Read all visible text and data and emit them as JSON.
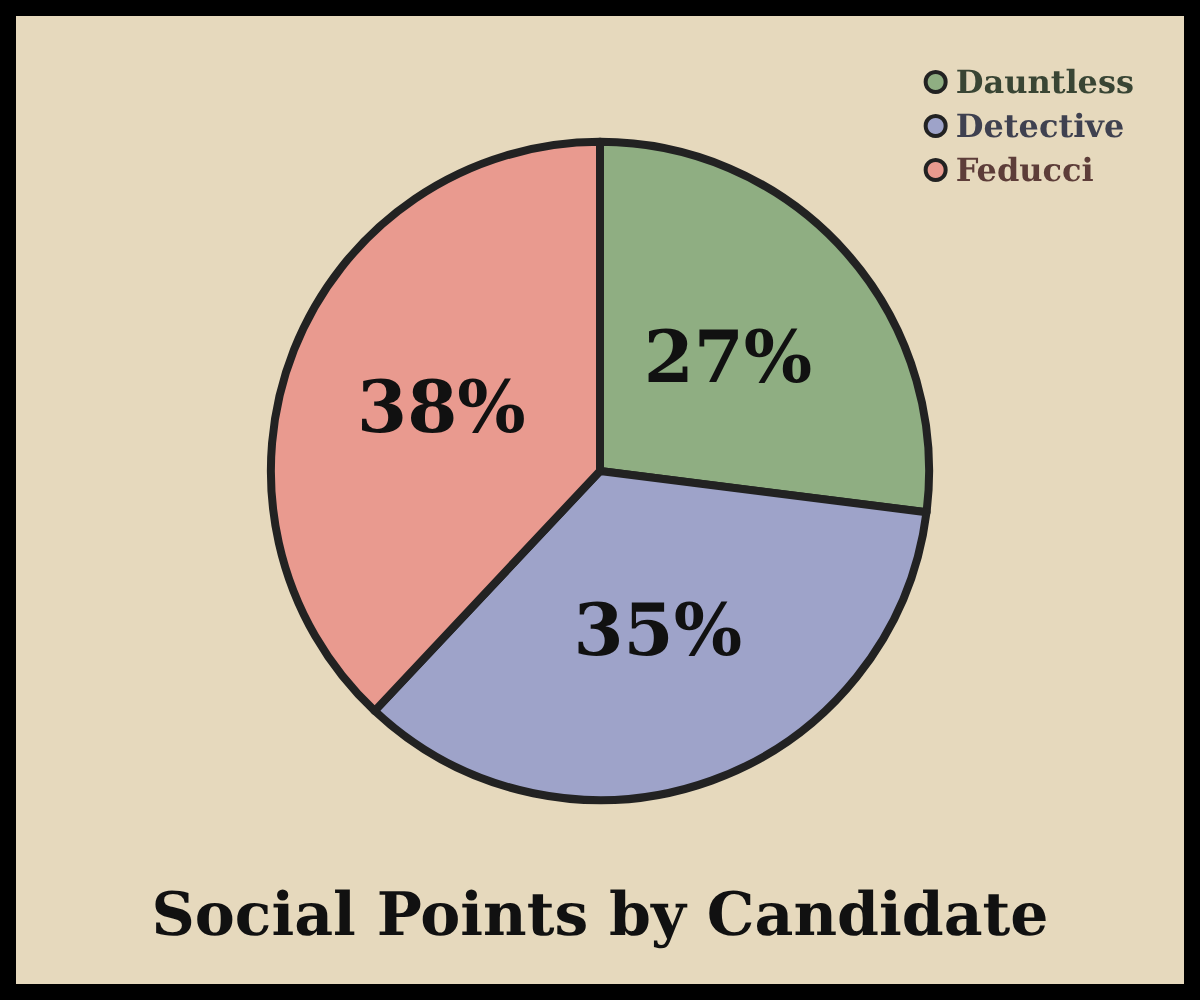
{
  "chart_data": {
    "type": "pie",
    "title": "Social Points by Candidate",
    "categories": [
      "Dauntless",
      "Detective",
      "Feducci"
    ],
    "values": [
      27,
      35,
      38
    ],
    "colors": [
      "#8fae82",
      "#9ea3c9",
      "#e99a8f"
    ],
    "value_labels": [
      "27%",
      "35%",
      "38%"
    ],
    "legend": "top right"
  }
}
